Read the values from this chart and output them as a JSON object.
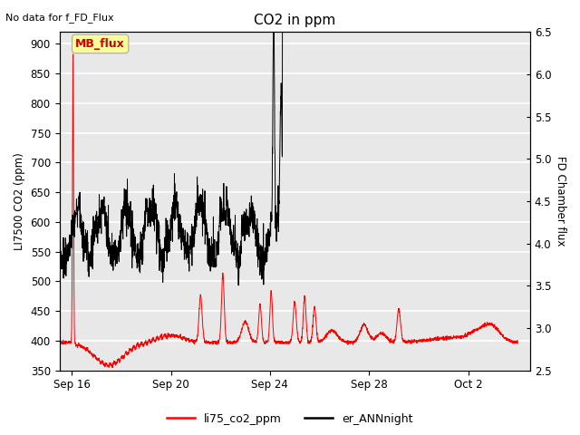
{
  "title": "CO2 in ppm",
  "top_left_text": "No data for f_FD_Flux",
  "ylabel_left": "LI7500 CO2 (ppm)",
  "ylabel_right": "FD Chamber flux",
  "ylim_left": [
    350,
    920
  ],
  "ylim_right": [
    2.5,
    6.5
  ],
  "yticks_left": [
    350,
    400,
    450,
    500,
    550,
    600,
    650,
    700,
    750,
    800,
    850,
    900
  ],
  "yticks_right": [
    2.5,
    3.0,
    3.5,
    4.0,
    4.5,
    5.0,
    5.5,
    6.0,
    6.5
  ],
  "xtick_labels": [
    "Sep 16",
    "Sep 20",
    "Sep 24",
    "Sep 28",
    "Oct 2"
  ],
  "legend_entries": [
    "li75_co2_ppm",
    "er_ANNnight"
  ],
  "legend_colors": [
    "#ff0000",
    "#000000"
  ],
  "line_color_red": "#ff0000",
  "line_color_black": "#000000",
  "background_color": "#ffffff",
  "axes_bg_color": "#e8e8e8",
  "grid_color": "#ffffff",
  "mb_flux_box_color": "#ffff99",
  "mb_flux_text": "MB_flux",
  "mb_flux_text_color": "#cc0000",
  "figsize": [
    6.4,
    4.8
  ],
  "dpi": 100
}
